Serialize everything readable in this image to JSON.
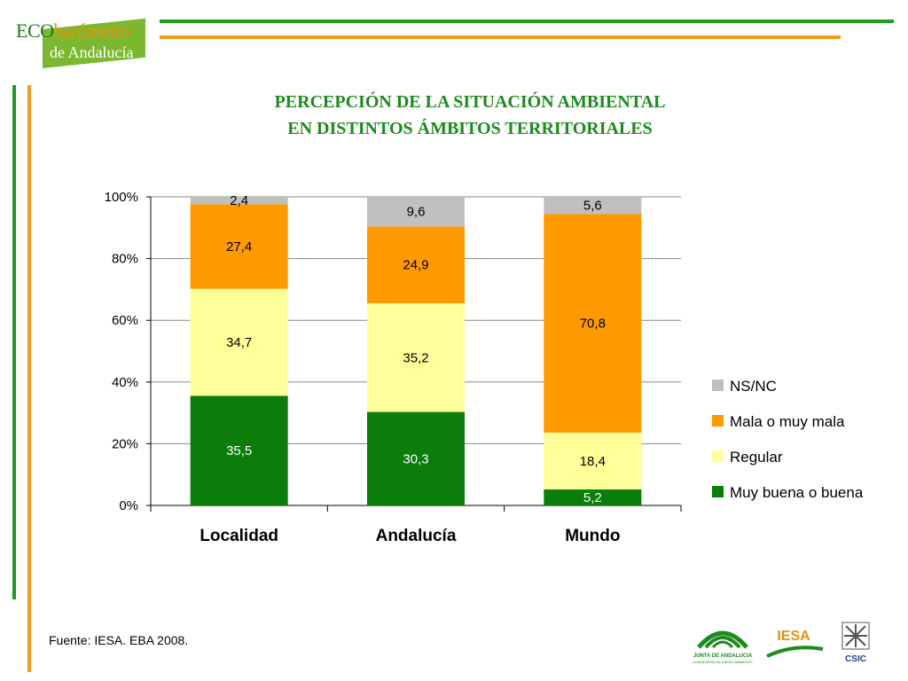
{
  "branding": {
    "logo_line1_a": "ECO",
    "logo_line1_b": "barómetro",
    "logo_line2": "de Andalucía",
    "footer_logo_1": "JUNTA DE ANDALUCIA",
    "footer_logo_1_sub": "CONSEJERIA DE MEDIO AMBIENTE",
    "footer_logo_2": "IESA",
    "footer_logo_3": "CSIC"
  },
  "title_line1": "PERCEPCIÓN DE LA SITUACIÓN AMBIENTAL",
  "title_line2": "EN DISTINTOS ÁMBITOS TERRITORIALES",
  "source": "Fuente: IESA. EBA 2008.",
  "colors": {
    "green": "#1e9a1e",
    "orange": "#f29a1f",
    "title": "#1f8a1f"
  },
  "chart_data": {
    "type": "bar",
    "stacked": true,
    "percent_stacked": true,
    "categories": [
      "Localidad",
      "Andalucía",
      "Mundo"
    ],
    "series": [
      {
        "name": "Muy buena o buena",
        "values": [
          35.5,
          30.3,
          5.2
        ],
        "color": "#0a7d0a",
        "label_color": "#ffffff"
      },
      {
        "name": "Regular",
        "values": [
          34.7,
          35.2,
          18.4
        ],
        "color": "#ffff99",
        "label_color": "#000000"
      },
      {
        "name": "Mala o muy mala",
        "values": [
          27.4,
          24.9,
          70.8
        ],
        "color": "#ff9900",
        "label_color": "#000000"
      },
      {
        "name": "NS/NC",
        "values": [
          2.4,
          9.6,
          5.6
        ],
        "color": "#c0c0c0",
        "label_color": "#000000"
      }
    ],
    "value_labels": [
      [
        "35,5",
        "30,3",
        "5,2"
      ],
      [
        "34,7",
        "35,2",
        "18,4"
      ],
      [
        "27,4",
        "24,9",
        "70,8"
      ],
      [
        "2,4",
        "9,6",
        "5,6"
      ]
    ],
    "y_ticks": [
      "0%",
      "20%",
      "40%",
      "60%",
      "80%",
      "100%"
    ],
    "ylim": [
      0,
      100
    ],
    "grid": true,
    "legend_position": "right",
    "legend_order": [
      "NS/NC",
      "Mala o muy mala",
      "Regular",
      "Muy buena o buena"
    ]
  }
}
